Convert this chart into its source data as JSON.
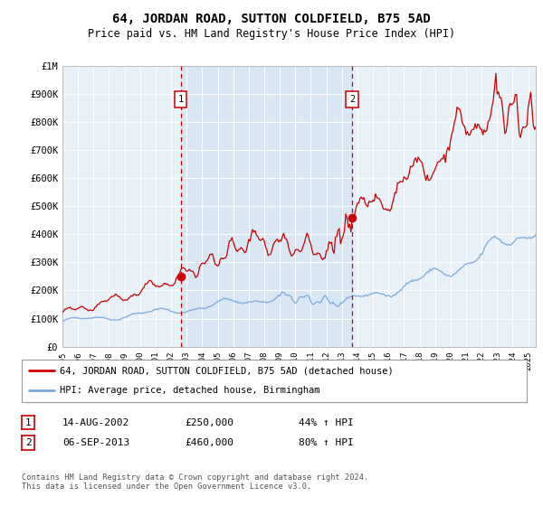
{
  "title": "64, JORDAN ROAD, SUTTON COLDFIELD, B75 5AD",
  "subtitle": "Price paid vs. HM Land Registry's House Price Index (HPI)",
  "red_color": "#cc0000",
  "blue_color": "#7aaadd",
  "fill_color": "#ccddf5",
  "ylim": [
    0,
    1000000
  ],
  "yticks": [
    0,
    100000,
    200000,
    300000,
    400000,
    500000,
    600000,
    700000,
    800000,
    900000,
    1000000
  ],
  "ytick_labels": [
    "£0",
    "£100K",
    "£200K",
    "£300K",
    "£400K",
    "£500K",
    "£600K",
    "£700K",
    "£800K",
    "£900K",
    "£1M"
  ],
  "xlim_start": 1995.0,
  "xlim_end": 2025.5,
  "xticks": [
    1995,
    1996,
    1997,
    1998,
    1999,
    2000,
    2001,
    2002,
    2003,
    2004,
    2005,
    2006,
    2007,
    2008,
    2009,
    2010,
    2011,
    2012,
    2013,
    2014,
    2015,
    2016,
    2017,
    2018,
    2019,
    2020,
    2021,
    2022,
    2023,
    2024,
    2025
  ],
  "sale1_x": 2002.62,
  "sale1_y": 250000,
  "sale2_x": 2013.67,
  "sale2_y": 460000,
  "legend_line1": "64, JORDAN ROAD, SUTTON COLDFIELD, B75 5AD (detached house)",
  "legend_line2": "HPI: Average price, detached house, Birmingham",
  "footer": "Contains HM Land Registry data © Crown copyright and database right 2024.\nThis data is licensed under the Open Government Licence v3.0.",
  "sale1_date": "14-AUG-2002",
  "sale1_price": "£250,000",
  "sale1_hpi": "44% ↑ HPI",
  "sale2_date": "06-SEP-2013",
  "sale2_price": "£460,000",
  "sale2_hpi": "80% ↑ HPI"
}
